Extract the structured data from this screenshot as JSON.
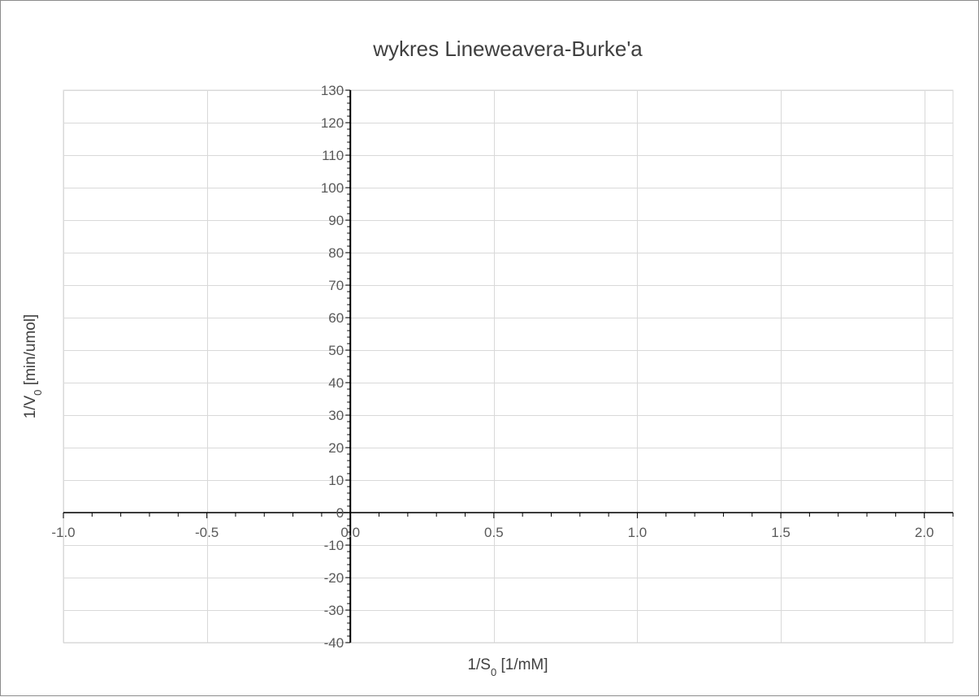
{
  "chart_data": {
    "type": "scatter",
    "title": "wykres Lineweavera-Burke'a",
    "xlabel": {
      "main": "1/S",
      "sub": "0",
      "rest": " [1/mM]"
    },
    "ylabel": {
      "main": "1/V",
      "sub": "0",
      "rest": " [min/umol]"
    },
    "xlim": [
      -1.0,
      2.1
    ],
    "ylim": [
      -40,
      130
    ],
    "x_major_step": 0.5,
    "x_minor_step": 0.1,
    "y_major_step": 10,
    "y_minor_step": 2,
    "x_tick_decimals": 1,
    "grid": true,
    "legend": "none",
    "series": [],
    "colors": {
      "grid": "#d9d9d9",
      "axis": "#000000",
      "text": "#595959",
      "frame": "#8c8c8c"
    }
  }
}
